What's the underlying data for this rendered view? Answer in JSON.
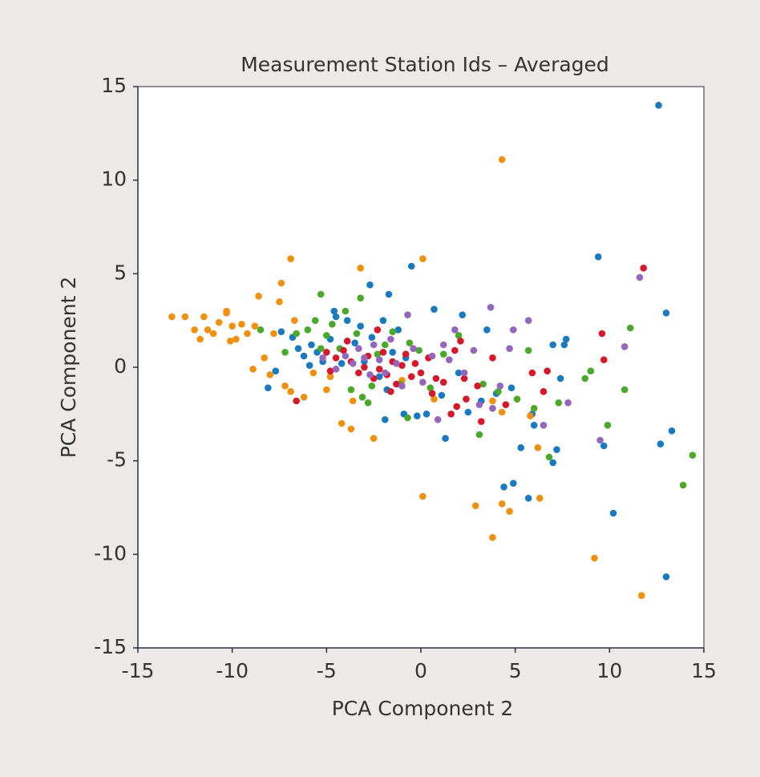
{
  "chart_data": {
    "type": "scatter",
    "title": "Measurement Station Ids – Averaged",
    "x_label": "PCA Component 2",
    "y_label": "PCA Component 2",
    "xlim": [
      -15,
      15
    ],
    "ylim": [
      -15,
      15
    ],
    "xticks": [
      -15,
      -10,
      -5,
      0,
      5,
      10,
      15
    ],
    "yticks": [
      -15,
      -10,
      -5,
      0,
      5,
      10,
      15
    ],
    "grid": false,
    "series": [
      {
        "color": "#1a7ac0",
        "x": [
          12.6,
          9.4,
          13.0,
          13.3,
          12.7,
          13.0,
          10.2,
          9.7,
          7.0,
          7.2,
          5.7,
          4.9,
          4.4,
          5.3,
          7.7,
          7.6,
          7.0,
          7.4,
          1.3,
          -0.5,
          -2.7,
          -1.7,
          0.7,
          2.2,
          3.5,
          -8.1,
          -7.7,
          -7.4,
          -6.5,
          -6.2,
          -5.8,
          -5.5,
          -5.2,
          -4.8,
          -4.5,
          -4.2,
          -3.9,
          -3.5,
          -3.0,
          -2.6,
          -2.2,
          -1.8,
          -1.5,
          -1.2,
          -0.8,
          -0.2,
          0.3,
          1.1,
          2.0,
          2.5,
          3.2,
          4.0,
          4.8,
          5.9,
          6.0,
          -1.9,
          -0.9,
          -6.8,
          -5.9,
          -4.6,
          -3.2,
          -2.0
        ],
        "values": [
          14.0,
          5.9,
          2.9,
          -3.4,
          -4.1,
          -11.2,
          -7.8,
          -4.2,
          -5.1,
          -4.4,
          -7.0,
          -6.2,
          -6.4,
          -4.3,
          1.5,
          1.2,
          1.2,
          -0.6,
          -3.8,
          5.4,
          4.4,
          3.9,
          3.1,
          2.8,
          2.0,
          -1.1,
          -0.2,
          1.9,
          1.0,
          0.6,
          1.2,
          0.8,
          0.3,
          1.5,
          2.7,
          0.2,
          2.5,
          1.3,
          0.3,
          1.6,
          -0.5,
          -1.2,
          0.8,
          2.0,
          0.5,
          -2.6,
          -2.5,
          -1.5,
          -0.3,
          -2.4,
          -1.8,
          -1.4,
          -1.1,
          -2.5,
          -3.1,
          -2.8,
          -2.5,
          1.6,
          0.1,
          3.0,
          2.2,
          2.5
        ]
      },
      {
        "color": "#f0900f",
        "x": [
          4.3,
          0.1,
          -3.2,
          -6.9,
          -7.4,
          -13.2,
          -12.5,
          -12.0,
          -11.7,
          -11.5,
          -11.3,
          -11.0,
          -10.7,
          -10.3,
          -10.1,
          -10.0,
          -9.5,
          -9.2,
          -8.8,
          -8.6,
          -8.3,
          -8.0,
          -7.8,
          -7.5,
          -7.2,
          -6.9,
          -6.7,
          -6.2,
          -5.7,
          -5.0,
          -4.8,
          -4.2,
          -3.7,
          -3.6,
          -2.5,
          -1.0,
          0.1,
          2.9,
          3.8,
          4.3,
          4.7,
          6.3,
          6.2,
          5.8,
          4.3,
          9.2,
          11.7,
          3.8,
          0.7,
          -8.9,
          -9.8,
          -10.3
        ],
        "values": [
          11.1,
          5.8,
          5.3,
          5.8,
          4.5,
          2.7,
          2.7,
          2.0,
          1.5,
          2.7,
          2.0,
          1.8,
          2.4,
          2.9,
          1.4,
          2.2,
          2.3,
          1.8,
          2.2,
          3.8,
          0.5,
          -0.4,
          1.8,
          3.5,
          -1.0,
          -1.3,
          2.5,
          -1.6,
          -0.3,
          -1.2,
          -0.5,
          -3.0,
          -3.3,
          -1.8,
          -3.8,
          -0.7,
          -6.9,
          -7.4,
          -9.1,
          -7.3,
          -7.7,
          -7.0,
          -4.3,
          -2.6,
          -2.4,
          -10.2,
          -12.2,
          -1.8,
          -1.7,
          -0.1,
          1.5,
          3.0
        ]
      },
      {
        "color": "#4aa82a",
        "x": [
          14.4,
          13.9,
          11.1,
          10.8,
          9.9,
          9.0,
          8.7,
          6.8,
          7.3,
          6.0,
          5.7,
          3.1,
          -5.3,
          -8.5,
          -7.2,
          -6.6,
          -6.0,
          -5.6,
          -5.3,
          -5.0,
          -4.7,
          -4.3,
          -4.0,
          -3.7,
          -3.4,
          -3.1,
          -2.8,
          -2.3,
          -1.9,
          -1.5,
          -1.1,
          -0.6,
          -0.1,
          0.5,
          1.2,
          2.0,
          3.3,
          4.1,
          5.1,
          -0.7,
          -3.2,
          -2.6
        ],
        "values": [
          -4.7,
          -6.3,
          2.1,
          -1.2,
          -3.1,
          -0.2,
          -0.6,
          -4.8,
          -1.9,
          -2.2,
          0.9,
          -3.6,
          3.9,
          2.0,
          0.8,
          1.8,
          2.0,
          2.5,
          1.0,
          1.7,
          2.3,
          1.0,
          3.0,
          -1.2,
          1.8,
          -1.6,
          -1.9,
          0.7,
          1.2,
          1.9,
          -0.9,
          1.3,
          0.9,
          -1.1,
          0.7,
          1.7,
          -0.9,
          -1.3,
          -1.7,
          -2.7,
          3.7,
          -1.0
        ]
      },
      {
        "color": "#d7182a",
        "x": [
          11.8,
          9.7,
          9.6,
          6.5,
          6.7,
          5.9,
          4.5,
          3.2,
          2.4,
          1.6,
          -6.6,
          -5.0,
          -4.5,
          -4.1,
          -3.7,
          -3.3,
          -3.0,
          -2.8,
          -2.5,
          -2.2,
          -2.0,
          -1.8,
          -1.5,
          -1.3,
          -1.0,
          -0.8,
          -0.5,
          -0.3,
          0.0,
          0.4,
          0.8,
          1.2,
          1.8,
          2.1,
          2.3,
          -2.3,
          -3.9,
          -1.6,
          0.6,
          1.9,
          3.0,
          3.8,
          -4.8
        ],
        "values": [
          5.3,
          0.4,
          1.8,
          -1.3,
          -0.2,
          -0.3,
          -2.0,
          -2.9,
          -1.7,
          -2.5,
          -1.8,
          0.8,
          0.5,
          0.9,
          0.3,
          -0.3,
          0.0,
          0.6,
          -0.6,
          -0.1,
          0.8,
          -0.4,
          0.3,
          -0.9,
          0.1,
          0.7,
          -0.5,
          0.2,
          -0.3,
          0.5,
          -0.6,
          -0.8,
          0.9,
          1.4,
          -0.6,
          2.0,
          1.4,
          -1.3,
          -1.4,
          -2.1,
          -1.0,
          0.5,
          -0.2
        ]
      },
      {
        "color": "#9467bd",
        "x": [
          11.6,
          10.8,
          9.5,
          7.8,
          6.5,
          5.7,
          4.9,
          3.7,
          4.7,
          3.8,
          3.1,
          0.9,
          -4.5,
          -4.0,
          -3.6,
          -3.3,
          -3.0,
          -2.7,
          -2.5,
          -2.2,
          -1.9,
          -1.6,
          -1.3,
          -1.0,
          -0.7,
          -0.4,
          0.1,
          0.6,
          1.2,
          1.8,
          2.3,
          2.8,
          -5.2,
          1.5,
          4.2
        ],
        "values": [
          4.8,
          1.1,
          -3.9,
          -1.9,
          -3.1,
          2.5,
          2.0,
          3.2,
          1.0,
          -2.2,
          -2.0,
          -2.8,
          -0.1,
          0.6,
          0.2,
          1.0,
          0.5,
          -0.4,
          1.2,
          0.4,
          -0.3,
          1.5,
          0.2,
          -1.0,
          2.8,
          1.0,
          -0.8,
          0.6,
          1.2,
          2.0,
          -0.3,
          0.9,
          0.5,
          0.4,
          -1.0
        ]
      }
    ]
  }
}
